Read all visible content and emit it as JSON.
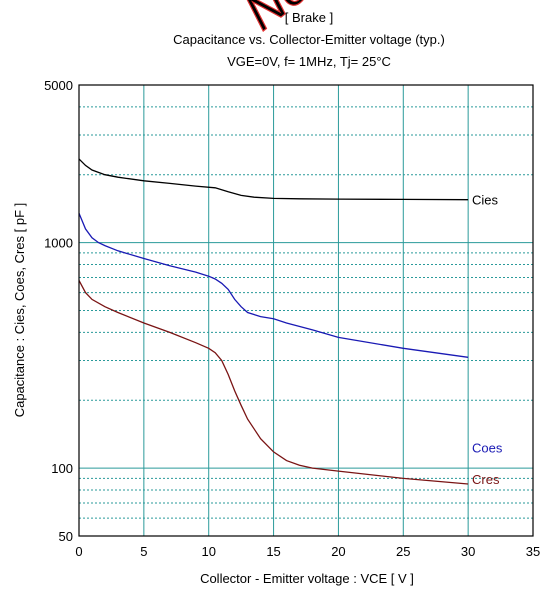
{
  "watermark": "Not",
  "chart_data": {
    "type": "line",
    "title": "[ Brake ]",
    "subtitle": "Capacitance  vs.  Collector-Emitter voltage  (typ.)",
    "conditions": "VGE=0V,  f= 1MHz,  Tj= 25°C",
    "xlabel": "Collector - Emitter voltage  :  VCE  [ V ]",
    "ylabel": "Capacitance  :  Cies, Coes, Cres  [ pF ]",
    "xlim": [
      0,
      35
    ],
    "ylim": [
      50,
      5000
    ],
    "yscale": "log",
    "grid": true,
    "x_ticks": [
      "0",
      "5",
      "10",
      "15",
      "20",
      "25",
      "30",
      "35"
    ],
    "y_ticks": [
      "50",
      "100",
      "1000",
      "5000"
    ],
    "series": [
      {
        "name": "Cies",
        "color": "#000000",
        "x": [
          0,
          0.5,
          1,
          2,
          3,
          5,
          7,
          9,
          10.5,
          11.5,
          12.5,
          13.5,
          15,
          17,
          20,
          25,
          30
        ],
        "y": [
          2350,
          2200,
          2100,
          2000,
          1950,
          1880,
          1830,
          1780,
          1750,
          1680,
          1620,
          1590,
          1570,
          1565,
          1560,
          1555,
          1550
        ]
      },
      {
        "name": "Coes",
        "color": "#1a1ab4",
        "x": [
          0,
          0.5,
          1,
          1.5,
          2,
          3,
          5,
          7,
          9,
          10,
          10.5,
          11,
          11.5,
          12,
          12.5,
          13,
          14,
          15,
          16,
          18,
          20,
          25,
          30
        ],
        "y": [
          1350,
          1150,
          1050,
          1000,
          970,
          920,
          850,
          790,
          740,
          710,
          690,
          660,
          620,
          560,
          520,
          490,
          470,
          460,
          440,
          410,
          380,
          340,
          310
        ]
      },
      {
        "name": "Cres",
        "color": "#7a1414",
        "x": [
          0,
          0.5,
          1,
          2,
          3,
          5,
          7,
          9,
          10,
          10.5,
          11,
          11.5,
          12,
          12.5,
          13,
          14,
          15,
          16,
          17,
          18,
          20,
          25,
          30
        ],
        "y": [
          680,
          600,
          560,
          520,
          490,
          440,
          400,
          360,
          340,
          325,
          300,
          260,
          220,
          190,
          165,
          135,
          118,
          108,
          103,
          100,
          97,
          90,
          85
        ]
      }
    ]
  }
}
